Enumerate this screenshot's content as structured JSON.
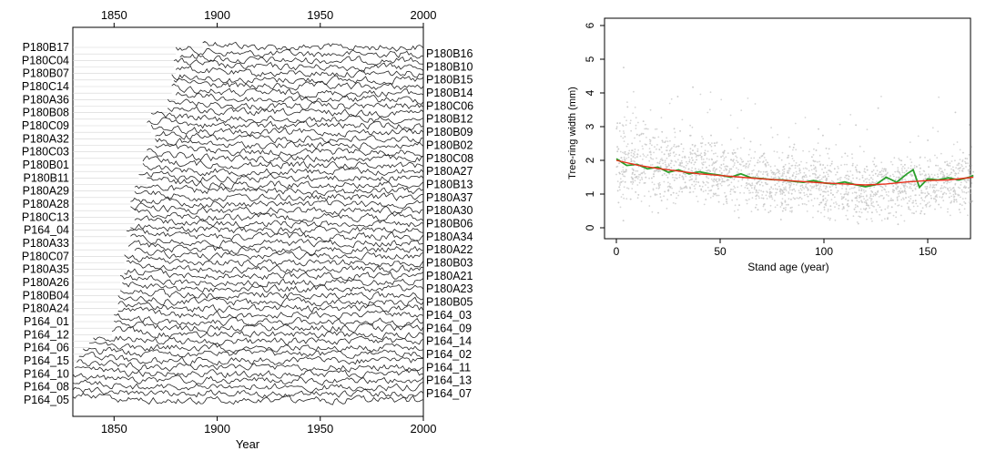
{
  "chart_data": [
    {
      "type": "line",
      "title": "",
      "xlabel": "Year",
      "ylabel": "",
      "xlim": [
        1830,
        2000
      ],
      "x_ticks": [
        1850,
        1900,
        1950,
        2000
      ],
      "grid": false,
      "left_labels": [
        "P180B17",
        "P180C04",
        "P180B07",
        "P180C14",
        "P180A36",
        "P180B08",
        "P180C09",
        "P180A32",
        "P180C03",
        "P180B01",
        "P180B11",
        "P180A29",
        "P180A28",
        "P180C13",
        "P164_04",
        "P180A33",
        "P180C07",
        "P180A35",
        "P180A26",
        "P180B04",
        "P180A24",
        "P164_01",
        "P164_12",
        "P164_06",
        "P164_15",
        "P164_10",
        "P164_08",
        "P164_05"
      ],
      "right_labels": [
        "P180B16",
        "P180B10",
        "P180B15",
        "P180B14",
        "P180C06",
        "P180B12",
        "P180B09",
        "P180B02",
        "P180C08",
        "P180A27",
        "P180B13",
        "P180A37",
        "P180A30",
        "P180B06",
        "P180A34",
        "P180A22",
        "P180B03",
        "P180A21",
        "P180A23",
        "P180B05",
        "P164_03",
        "P164_09",
        "P164_14",
        "P164_02",
        "P164_11",
        "P164_13",
        "P164_07"
      ],
      "series_start_years": [
        1893,
        1880,
        1882,
        1879,
        1880,
        1878,
        1879,
        1878,
        1880,
        1876,
        1876,
        1868,
        1866,
        1868,
        1870,
        1870,
        1870,
        1866,
        1864,
        1864,
        1862,
        1866,
        1860,
        1860,
        1858,
        1858,
        1860,
        1860,
        1858,
        1856,
        1858,
        1857,
        1860,
        1855,
        1856,
        1855,
        1853,
        1854,
        1853,
        1852,
        1852,
        1852,
        1850,
        1850,
        1849,
        1840,
        1838,
        1835,
        1833,
        1832,
        1831,
        1830,
        1830,
        1830,
        1830
      ]
    },
    {
      "type": "scatter",
      "title": "",
      "xlabel": "Stand age (year)",
      "ylabel": "Tree-ring width (mm)",
      "xlim": [
        0,
        175
      ],
      "ylim": [
        0,
        6
      ],
      "x_ticks": [
        0,
        50,
        100,
        150
      ],
      "y_ticks": [
        0,
        1,
        2,
        3,
        4,
        5,
        6
      ],
      "grid": false,
      "colors": {
        "points": "#c8c8c8",
        "mean": "#2ca02c",
        "trend": "#e8301c"
      },
      "series": [
        {
          "style": "line",
          "color": "#2ca02c",
          "x": [
            0,
            5,
            10,
            15,
            20,
            25,
            30,
            35,
            40,
            45,
            50,
            55,
            60,
            65,
            70,
            75,
            80,
            85,
            90,
            95,
            100,
            105,
            110,
            115,
            120,
            125,
            130,
            135,
            140,
            143,
            146,
            150,
            155,
            160,
            165,
            170,
            172
          ],
          "y": [
            2.05,
            1.85,
            1.88,
            1.75,
            1.8,
            1.65,
            1.72,
            1.6,
            1.66,
            1.6,
            1.56,
            1.5,
            1.6,
            1.48,
            1.46,
            1.43,
            1.42,
            1.38,
            1.35,
            1.4,
            1.33,
            1.3,
            1.36,
            1.28,
            1.22,
            1.28,
            1.5,
            1.35,
            1.6,
            1.72,
            1.2,
            1.45,
            1.42,
            1.48,
            1.42,
            1.5,
            1.55
          ]
        },
        {
          "style": "line",
          "color": "#e8301c",
          "x": [
            0,
            10,
            20,
            30,
            40,
            50,
            60,
            70,
            80,
            90,
            100,
            110,
            120,
            130,
            140,
            150,
            160,
            172
          ],
          "y": [
            2.0,
            1.86,
            1.76,
            1.68,
            1.6,
            1.55,
            1.5,
            1.45,
            1.41,
            1.37,
            1.33,
            1.3,
            1.27,
            1.3,
            1.36,
            1.4,
            1.42,
            1.5
          ]
        }
      ]
    }
  ]
}
